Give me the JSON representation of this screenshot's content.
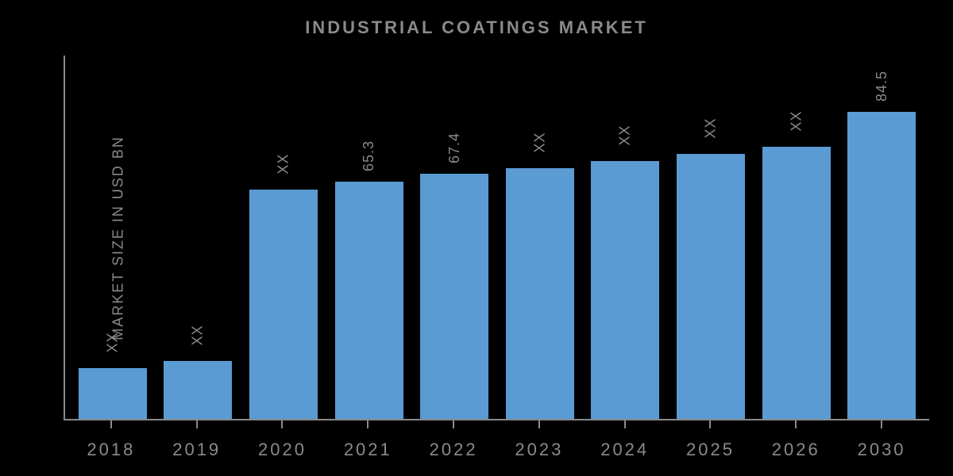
{
  "chart": {
    "type": "bar",
    "title": "INDUSTRIAL COATINGS MARKET",
    "ylabel": "MARKET SIZE IN USD BN",
    "background_color": "#000000",
    "axis_color": "#8a8a8a",
    "text_color": "#8a8a8a",
    "bar_color": "#5a9bd4",
    "title_fontsize": 22,
    "label_fontsize": 18,
    "xtick_fontsize": 22,
    "ylim": [
      0,
      100
    ],
    "bar_width_pct": 80,
    "categories": [
      "2018",
      "2019",
      "2020",
      "2021",
      "2022",
      "2023",
      "2024",
      "2025",
      "2026",
      "2030"
    ],
    "display_labels": [
      "XX",
      "XX",
      "XX",
      "65.3",
      "67.4",
      "XX",
      "XX",
      "XX",
      "XX",
      "84.5"
    ],
    "values": [
      14,
      16,
      63,
      65.3,
      67.4,
      69,
      71,
      73,
      75,
      84.5
    ]
  }
}
